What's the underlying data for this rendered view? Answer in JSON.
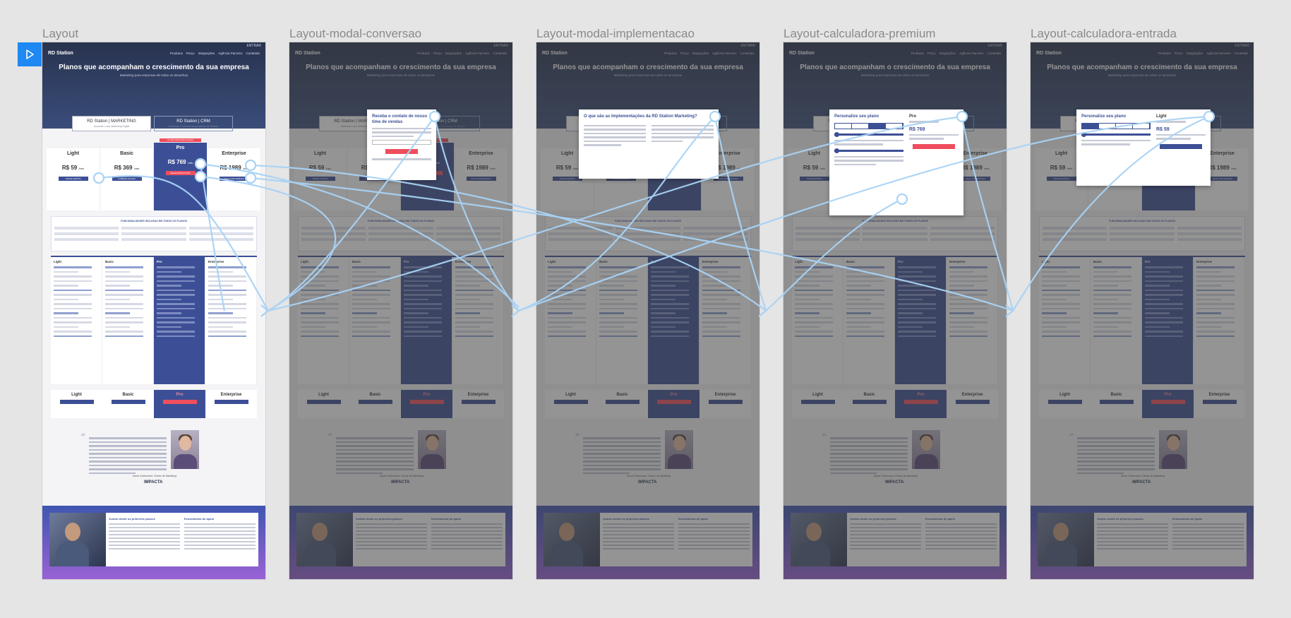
{
  "frames": [
    {
      "title": "Layout",
      "modal": null
    },
    {
      "title": "Layout-modal-conversao",
      "modal": "conversao"
    },
    {
      "title": "Layout-modal-implementacao",
      "modal": "implementacao"
    },
    {
      "title": "Layout-calculadora-premium",
      "modal": "premium"
    },
    {
      "title": "Layout-calculadora-entrada",
      "modal": "entrada"
    }
  ],
  "page": {
    "logo": "RD Station",
    "nav_items": [
      "Produtos",
      "Preço",
      "Integrações",
      "Agência Parceiro",
      "Conteúdo"
    ],
    "topbar": "ENTRAR  ",
    "headline": "Planos que acompanham o crescimento da sua empresa",
    "subline": "Marketing para empresas de todos os tamanhos",
    "tabs": [
      {
        "label": "RD Station | MARKETING",
        "sub": "Aumente o seu Marketing Digital"
      },
      {
        "label": "RD Station | CRM",
        "sub": "Gerencie e melhore seu processo de vendas"
      }
    ],
    "plans": [
      {
        "name": "Light",
        "price": "R$ 59",
        "unit": "/mês",
        "button": "TESTE GRÁTIS",
        "badge": ""
      },
      {
        "name": "Basic",
        "price": "R$ 369",
        "unit": "/mês",
        "button": "COMECE AGORA",
        "badge": ""
      },
      {
        "name": "Pro",
        "price": "R$ 769",
        "unit": "/mês",
        "button": "SELECIONE PLANO",
        "badge": "PLANO MAIS ESCOLHIDO"
      },
      {
        "name": "Enterprise",
        "price": "R$ 1989",
        "unit": "/mês",
        "button": "FALE COM VENDAS",
        "badge": ""
      }
    ],
    "features_title": "FUNCIONALIDADES INCLUSAS EM TODOS OS PLANOS",
    "compare_cols": [
      "Light",
      "Basic",
      "Pro",
      "Enterprise"
    ],
    "quote_author": "Nome Sobrenome, Diretor de Marketing",
    "quote_company": "IMPACTA",
    "banner_titles": [
      "Juntos desde os primeiros passos",
      "Ecossistema de apoio"
    ]
  },
  "modals": {
    "conversao": {
      "title": "Receba o contato de nosso time de vendas"
    },
    "implementacao": {
      "title": "O que são as Implementações da RD Station Marketing?"
    },
    "premium": {
      "title": "Personalize seu plano",
      "plan": "Pro",
      "price": "R$ 769"
    },
    "entrada": {
      "title": "Personalize seu plano",
      "plan": "Light",
      "price": "R$ 59"
    }
  }
}
